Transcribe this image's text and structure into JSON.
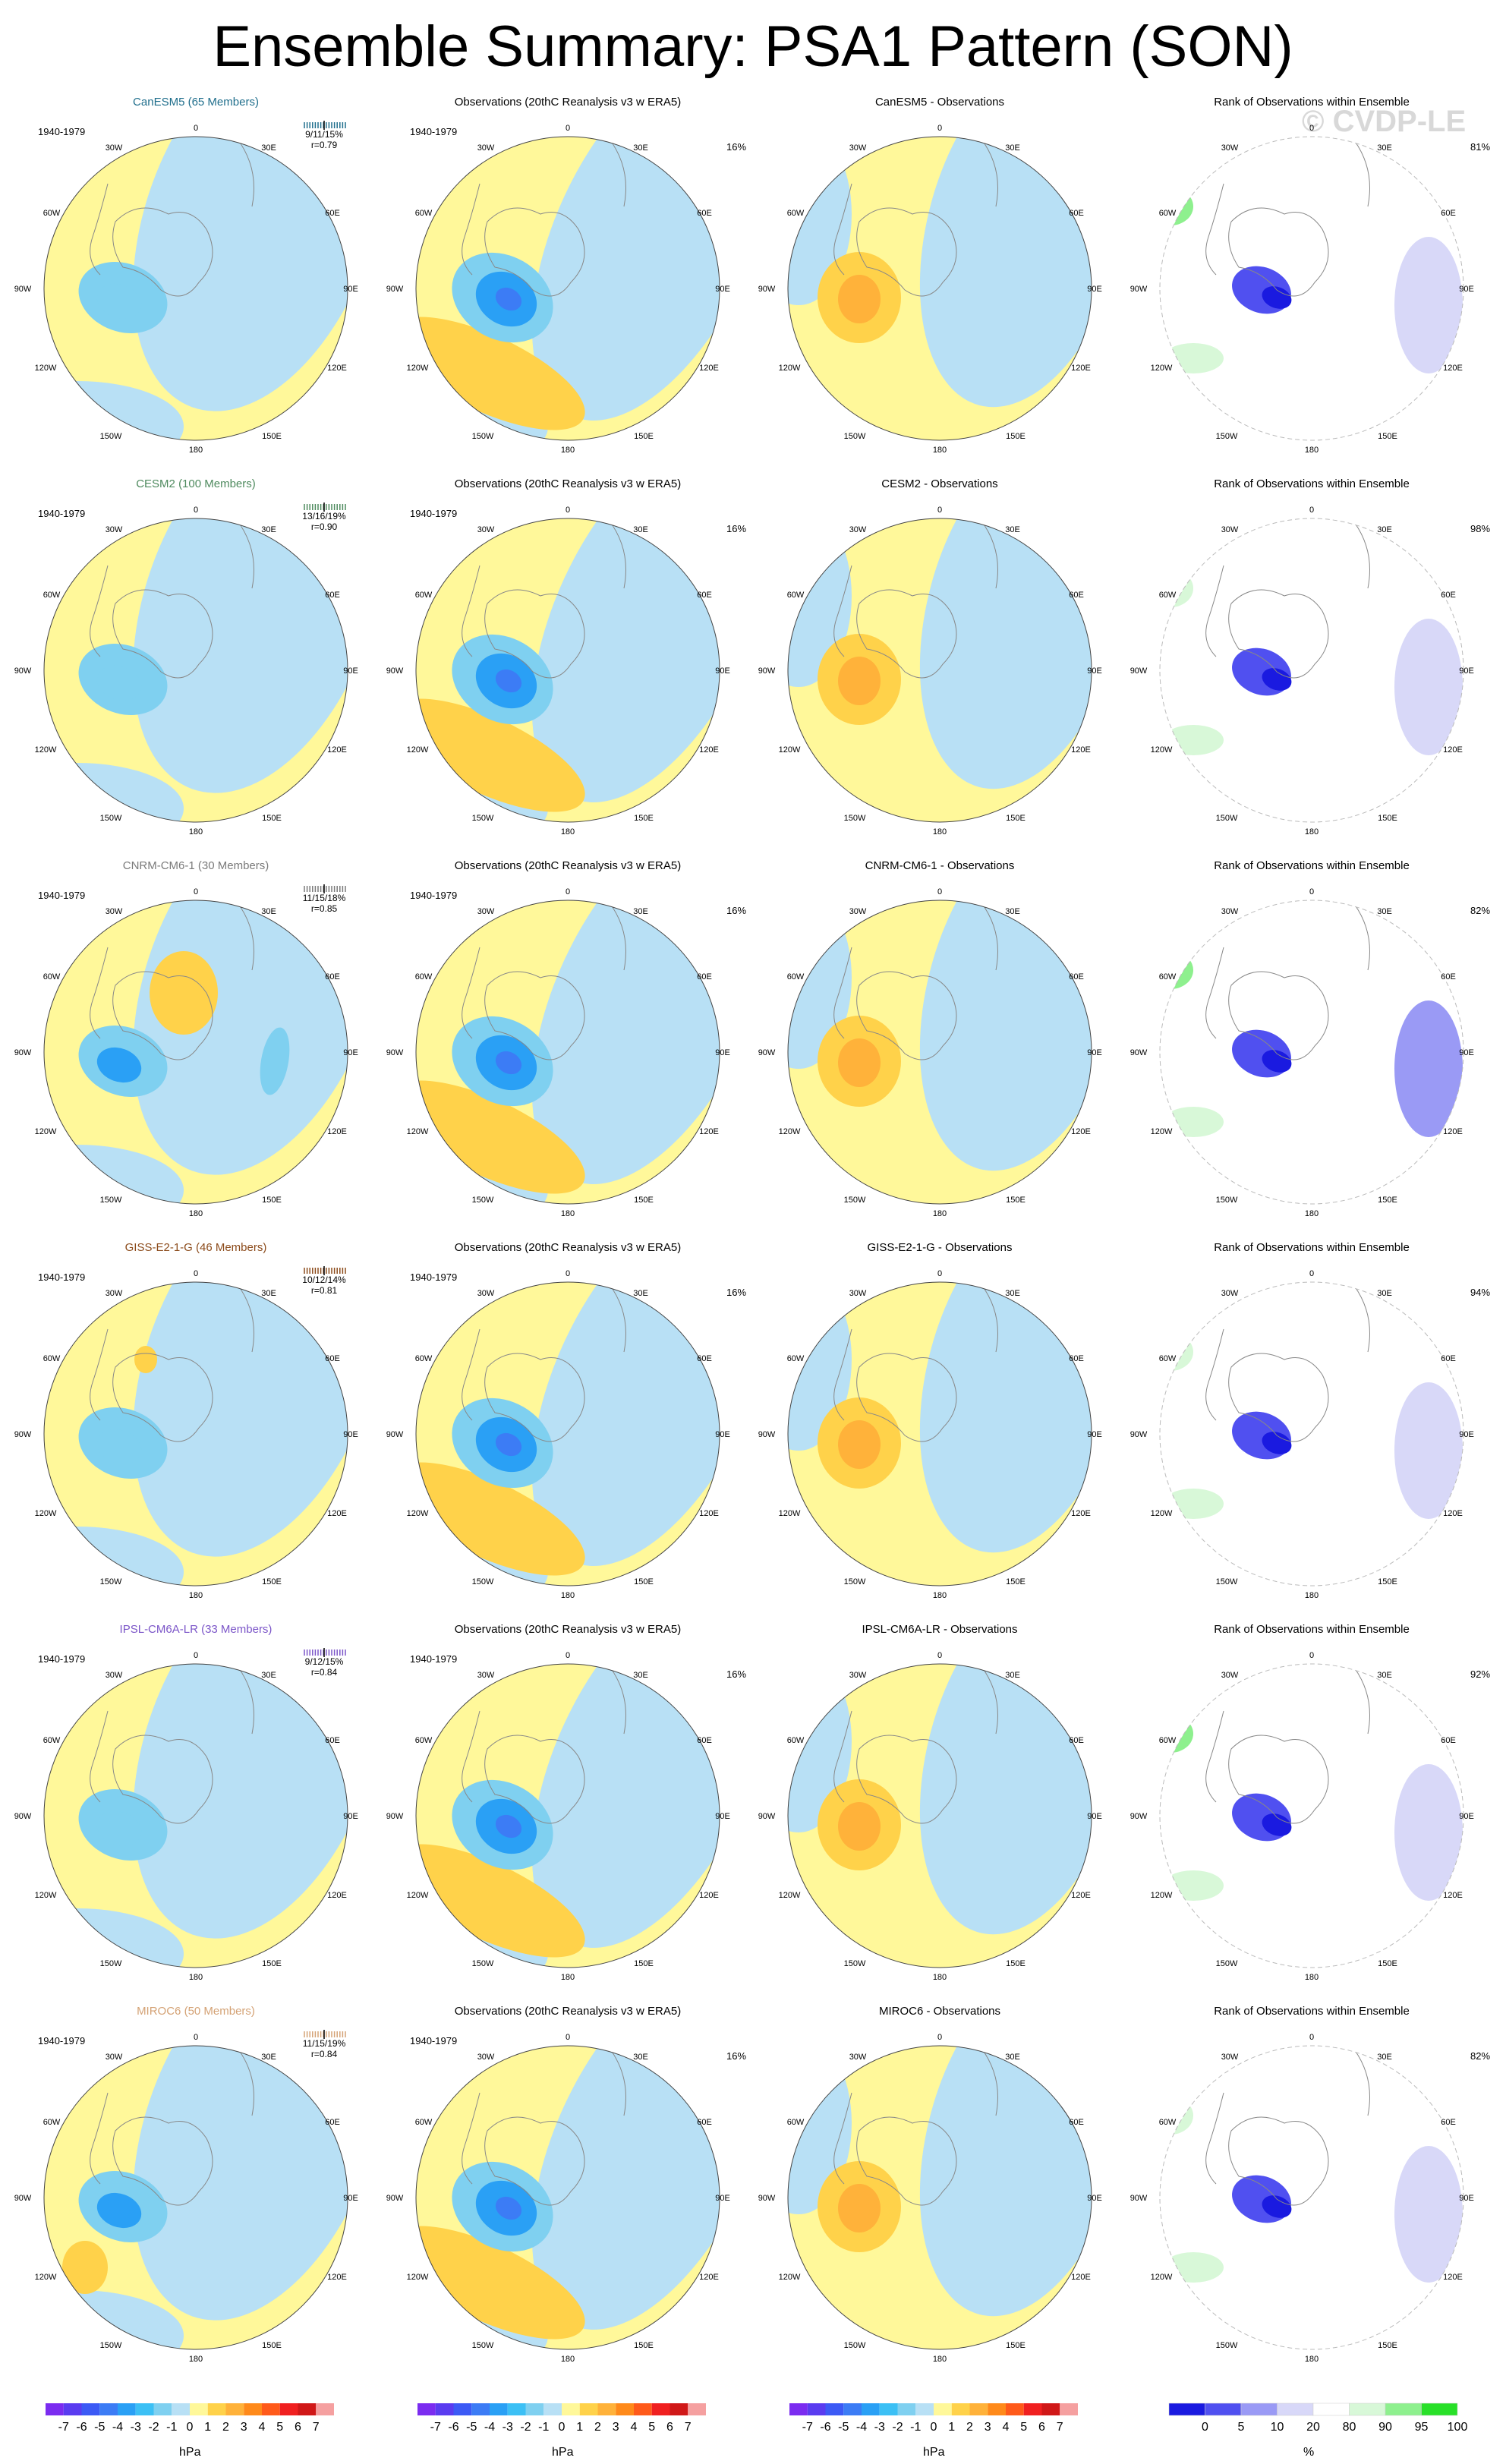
{
  "title": "Ensemble Summary: PSA1 Pattern (SON)",
  "watermark": "© CVDP-LE",
  "period": "1940-1979",
  "obs_title": "Observations (20thC Reanalysis v3 w ERA5)",
  "obs_pct": "16%",
  "rank_title": "Rank of Observations within Ensemble",
  "lon_labels": {
    "n": "0",
    "e30": "30E",
    "e60": "60E",
    "e90": "90E",
    "e120": "120E",
    "e150": "150E",
    "s": "180",
    "w150": "150W",
    "w120": "120W",
    "w90": "90W",
    "w60": "60W",
    "w30": "30W"
  },
  "rows": [
    {
      "model": "CanESM5 (65 Members)",
      "color": "#1f6e8c",
      "stats": "9/11/15%",
      "r": "r=0.79",
      "diff": "CanESM5 - Observations",
      "rank_pct": "81%"
    },
    {
      "model": "CESM2 (100 Members)",
      "color": "#4e8a5e",
      "stats": "13/16/19%",
      "r": "r=0.90",
      "diff": "CESM2 - Observations",
      "rank_pct": "98%"
    },
    {
      "model": "CNRM-CM6-1 (30 Members)",
      "color": "#7a7a7a",
      "stats": "11/15/18%",
      "r": "r=0.85",
      "diff": "CNRM-CM6-1 - Observations",
      "rank_pct": "82%"
    },
    {
      "model": "GISS-E2-1-G (46 Members)",
      "color": "#8b4a1a",
      "stats": "10/12/14%",
      "r": "r=0.81",
      "diff": "GISS-E2-1-G - Observations",
      "rank_pct": "94%"
    },
    {
      "model": "IPSL-CM6A-LR (33 Members)",
      "color": "#7b55c8",
      "stats": "9/12/15%",
      "r": "r=0.84",
      "diff": "IPSL-CM6A-LR - Observations",
      "rank_pct": "92%"
    },
    {
      "model": "MIROC6 (50 Members)",
      "color": "#d4a275",
      "stats": "11/15/19%",
      "r": "r=0.84",
      "diff": "MIROC6 - Observations",
      "rank_pct": "82%"
    }
  ],
  "chart_data": {
    "type": "heatmap",
    "projection": "south-polar-stereographic",
    "hpa_colorbar": {
      "unit": "hPa",
      "labels": [
        "-7",
        "-6",
        "-5",
        "-4",
        "-3",
        "-2",
        "-1",
        "0",
        "1",
        "2",
        "3",
        "4",
        "5",
        "6",
        "7"
      ],
      "colors": [
        "#7b2cf0",
        "#5a3cf0",
        "#3c5af5",
        "#3c7cf5",
        "#2aa0f5",
        "#3cc0f5",
        "#7fd0f0",
        "#b8e0f5",
        "#fff89a",
        "#ffd24a",
        "#ffb23a",
        "#ff8a1a",
        "#ff5a1a",
        "#f02020",
        "#d01818",
        "#f5a0a0"
      ]
    },
    "rank_colorbar": {
      "unit": "%",
      "labels": [
        "0",
        "5",
        "10",
        "20",
        "80",
        "90",
        "95",
        "100"
      ],
      "colors": [
        "#1a1ae0",
        "#5050f0",
        "#9a9af5",
        "#d8d8f8",
        "#ffffff",
        "#d8f8d8",
        "#8ef08e",
        "#28e028"
      ]
    }
  }
}
